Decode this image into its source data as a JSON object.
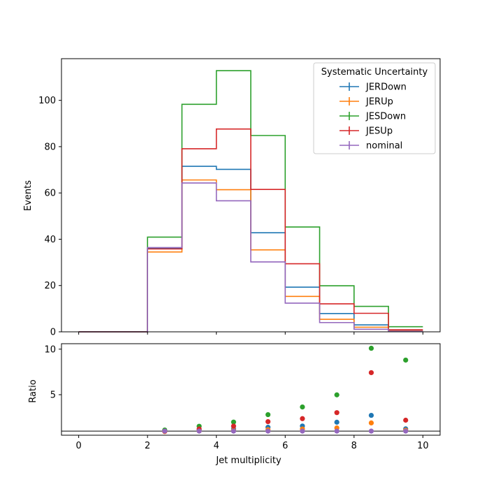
{
  "chart_data": [
    {
      "type": "line",
      "step": true,
      "ylabel": "Events",
      "xlim": [
        -0.5,
        10.5
      ],
      "ylim": [
        0,
        118
      ],
      "yticks": [
        0,
        20,
        40,
        60,
        80,
        100
      ],
      "xticks": [
        0,
        2,
        4,
        6,
        8,
        10
      ],
      "bin_edges": [
        0,
        2,
        3,
        4,
        5,
        6,
        7,
        8,
        9,
        10
      ],
      "grid": false,
      "legend": {
        "title": "Systematic Uncertainty",
        "placement": "top-right"
      },
      "series": [
        {
          "name": "JERDown",
          "color": "#1f77b4",
          "values": [
            0,
            36.0,
            71.5,
            70.2,
            42.8,
            19.3,
            7.9,
            3.0,
            0.5
          ]
        },
        {
          "name": "JERUp",
          "color": "#ff7f0e",
          "values": [
            0,
            34.5,
            65.6,
            61.4,
            35.4,
            15.3,
            5.4,
            2.0,
            0.4
          ]
        },
        {
          "name": "JESDown",
          "color": "#2ca02c",
          "values": [
            0,
            40.9,
            98.3,
            112.8,
            84.8,
            45.3,
            19.9,
            11.0,
            2.2
          ]
        },
        {
          "name": "JESUp",
          "color": "#d62728",
          "values": [
            0,
            35.8,
            79.1,
            87.6,
            61.5,
            29.4,
            12.1,
            8.0,
            0.9
          ]
        },
        {
          "name": "nominal",
          "color": "#9467bd",
          "values": [
            0,
            36.4,
            64.3,
            56.6,
            30.2,
            12.4,
            4.0,
            1.1,
            0.25
          ]
        }
      ]
    },
    {
      "type": "scatter",
      "xlabel": "Jet multiplicity",
      "ylabel": "Ratio",
      "xlim": [
        -0.5,
        10.5
      ],
      "ylim": [
        0.55,
        10.6
      ],
      "yticks": [
        5,
        10
      ],
      "xticks": [
        0,
        2,
        4,
        6,
        8,
        10
      ],
      "reference_line": 1,
      "x": [
        2.5,
        3.5,
        4.5,
        5.5,
        6.5,
        7.5,
        8.5,
        9.5
      ],
      "series": [
        {
          "name": "JERDown",
          "color": "#1f77b4",
          "values": [
            0.99,
            1.11,
            1.24,
            1.42,
            1.56,
            1.98,
            2.73,
            1.25
          ]
        },
        {
          "name": "JERUp",
          "color": "#ff7f0e",
          "values": [
            0.95,
            1.02,
            1.08,
            1.17,
            1.23,
            1.35,
            1.9,
            1.1
          ]
        },
        {
          "name": "JESDown",
          "color": "#2ca02c",
          "values": [
            1.12,
            1.53,
            1.99,
            2.81,
            3.65,
            4.98,
            10.1,
            8.8
          ]
        },
        {
          "name": "JESUp",
          "color": "#d62728",
          "values": [
            0.98,
            1.23,
            1.55,
            2.04,
            2.37,
            3.03,
            7.42,
            2.2
          ]
        },
        {
          "name": "nominal",
          "color": "#9467bd",
          "values": [
            1.0,
            1.0,
            1.0,
            1.0,
            1.0,
            1.0,
            1.0,
            1.0
          ]
        }
      ]
    }
  ]
}
